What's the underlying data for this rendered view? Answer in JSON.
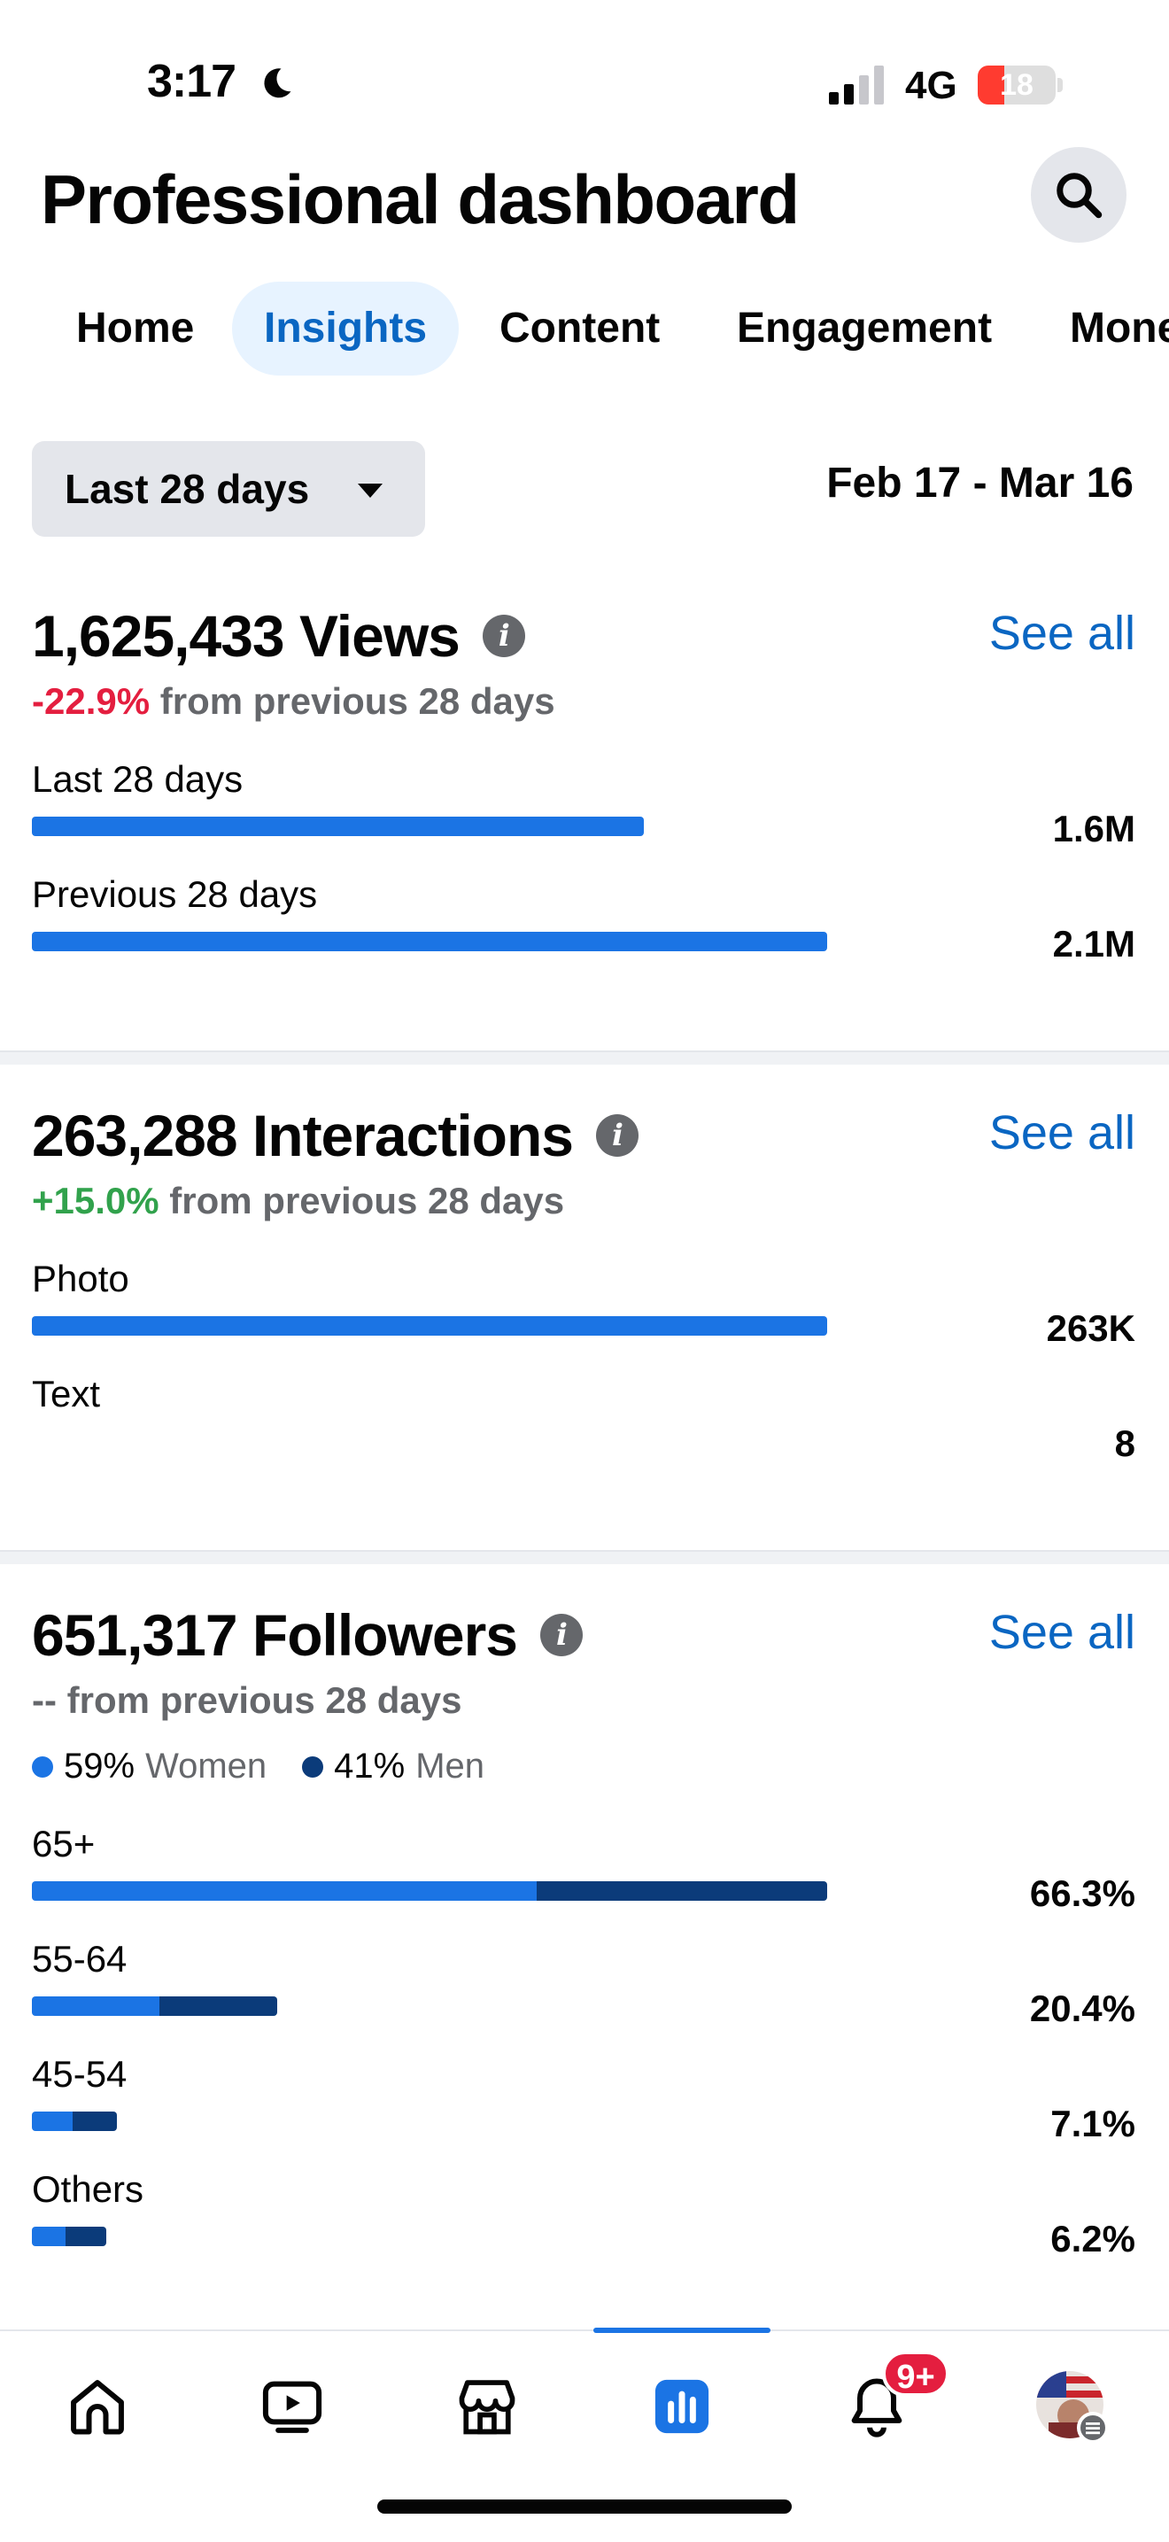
{
  "status_bar": {
    "time": "3:17",
    "network": "4G",
    "battery": "18"
  },
  "header": {
    "title": "Professional dashboard"
  },
  "tabs": [
    {
      "label": "Home",
      "active": false
    },
    {
      "label": "Insights",
      "active": true
    },
    {
      "label": "Content",
      "active": false
    },
    {
      "label": "Engagement",
      "active": false
    },
    {
      "label": "Mone",
      "active": false
    }
  ],
  "date_filter": {
    "selected": "Last 28 days",
    "range": "Feb 17 - Mar 16"
  },
  "views": {
    "title": "1,625,433 Views",
    "see_all": "See all",
    "change_value": "-22.9%",
    "change_text": "from previous 28 days",
    "rows": [
      {
        "label": "Last 28 days",
        "value": "1.6M",
        "fraction": 0.77
      },
      {
        "label": "Previous 28 days",
        "value": "2.1M",
        "fraction": 1.0
      }
    ]
  },
  "interactions": {
    "title": "263,288 Interactions",
    "see_all": "See all",
    "change_value": "+15.0%",
    "change_text": "from previous 28 days",
    "rows": [
      {
        "label": "Photo",
        "value": "263K",
        "fraction": 1.0
      },
      {
        "label": "Text",
        "value": "8",
        "fraction": 0.0
      }
    ]
  },
  "followers": {
    "title": "651,317 Followers",
    "see_all": "See all",
    "change_text": "-- from previous 28 days",
    "legend": {
      "women_pct": "59%",
      "women_label": "Women",
      "men_pct": "41%",
      "men_label": "Men"
    },
    "rows": [
      {
        "label": "65+",
        "value": "66.3%",
        "fraction": 1.0,
        "women_share": 0.635
      },
      {
        "label": "55-64",
        "value": "20.4%",
        "fraction": 0.308,
        "women_share": 0.52
      },
      {
        "label": "45-54",
        "value": "7.1%",
        "fraction": 0.107,
        "women_share": 0.48
      },
      {
        "label": "Others",
        "value": "6.2%",
        "fraction": 0.094,
        "women_share": 0.45
      }
    ]
  },
  "bottom_nav": {
    "notification_badge": "9+",
    "items": [
      "home-icon",
      "video-icon",
      "marketplace-icon",
      "dashboard-icon",
      "bell-icon",
      "profile-avatar"
    ]
  },
  "colors": {
    "accent": "#1b74e4",
    "accent_dark": "#0b3b7a",
    "link": "#0a66c2",
    "negative": "#e41e3f",
    "positive": "#31a24c"
  }
}
